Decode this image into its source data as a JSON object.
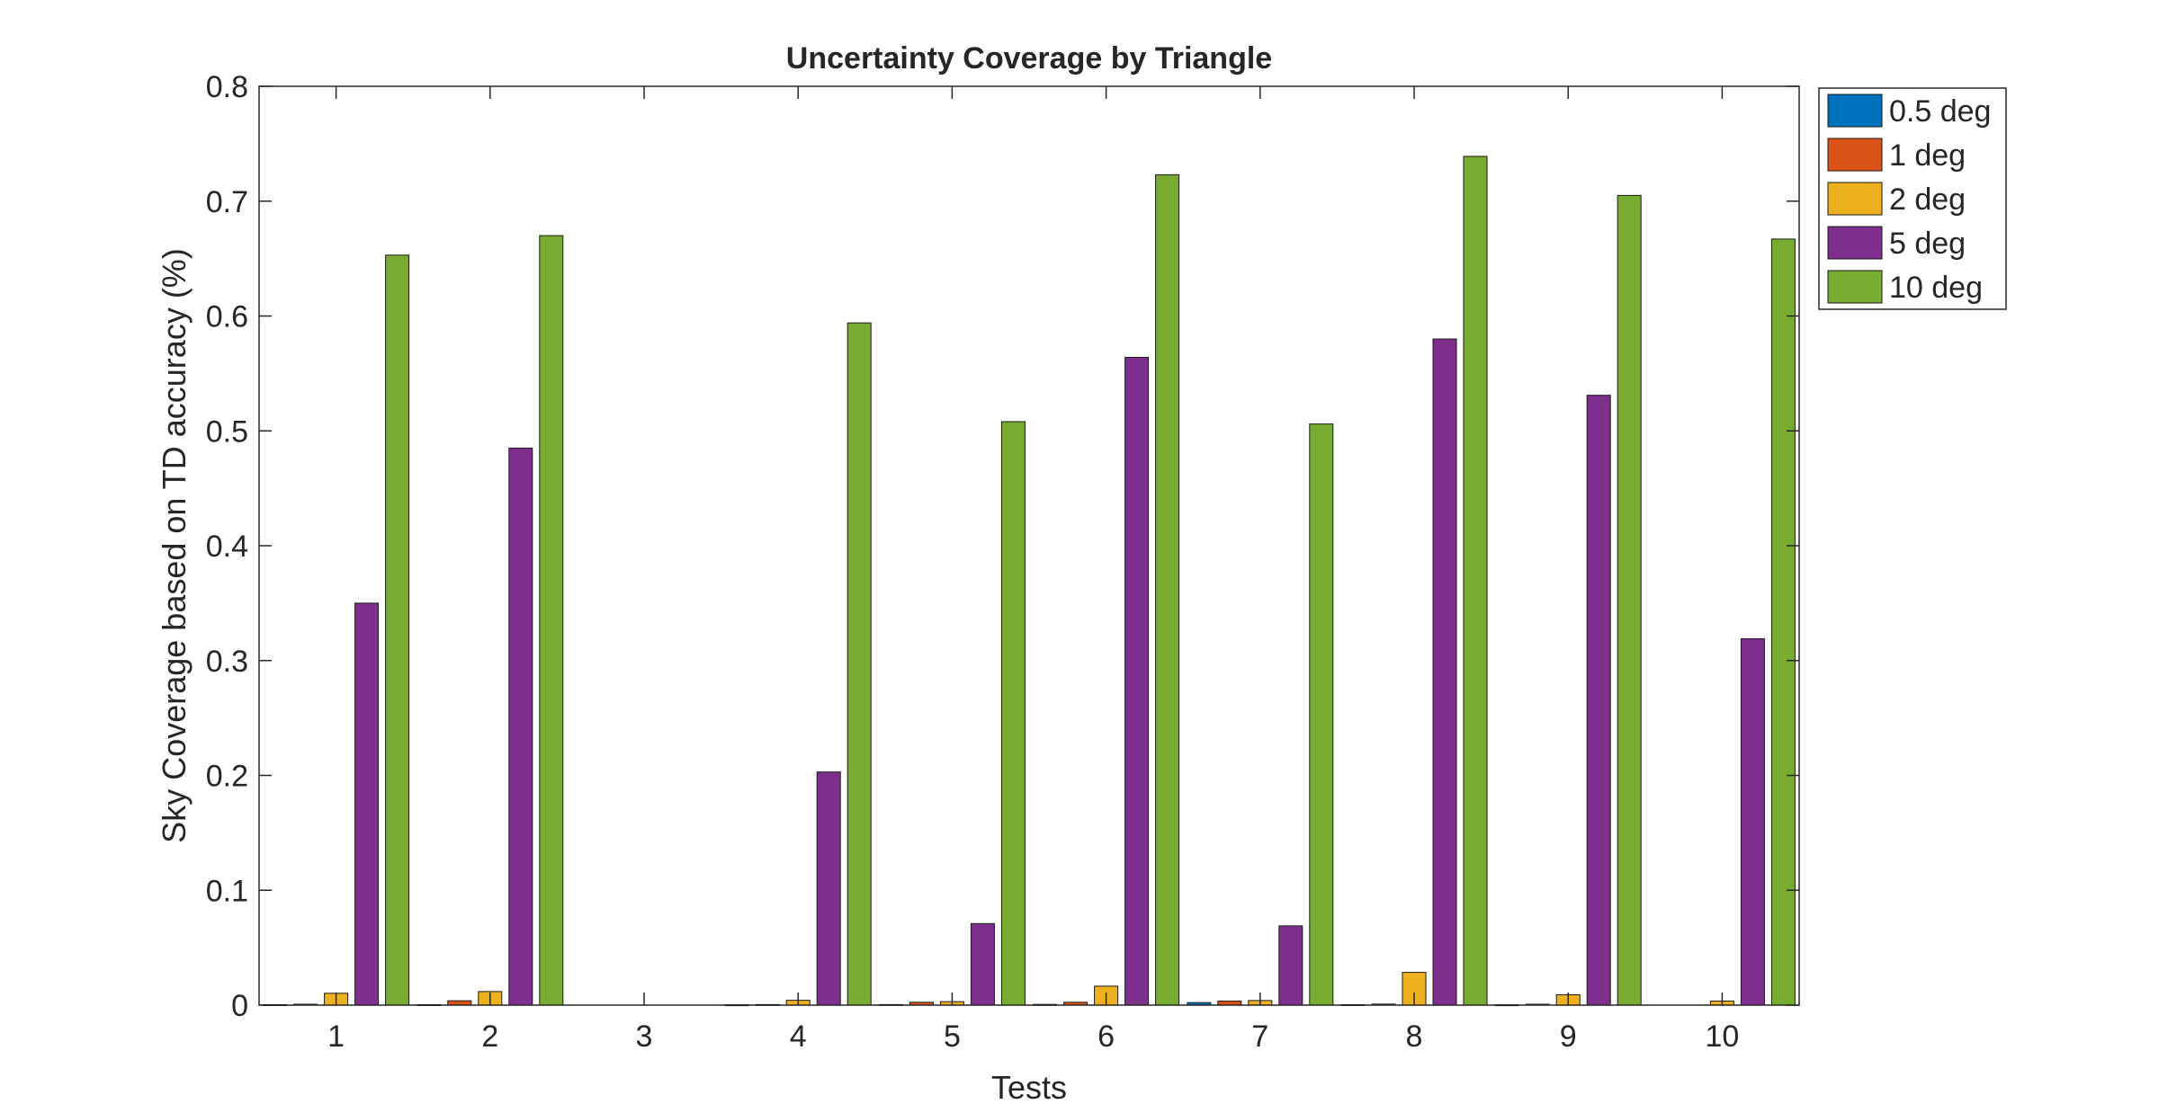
{
  "chart_data": {
    "type": "bar",
    "title": "Uncertainty Coverage by Triangle",
    "xlabel": "Tests",
    "ylabel": "Sky Coverage based on TD accuracy (%)",
    "categories": [
      "1",
      "2",
      "3",
      "4",
      "5",
      "6",
      "7",
      "8",
      "9",
      "10"
    ],
    "ylim": [
      0,
      0.8
    ],
    "yticks": [
      0,
      0.1,
      0.2,
      0.3,
      0.4,
      0.5,
      0.6,
      0.7,
      0.8
    ],
    "ytick_labels": [
      "0",
      "0.1",
      "0.2",
      "0.3",
      "0.4",
      "0.5",
      "0.6",
      "0.7",
      "0.8"
    ],
    "grid": false,
    "legend_position": "outside-top-right",
    "series": [
      {
        "name": "0.5 deg",
        "color": "#0072BD",
        "values": [
          0.0004,
          0.0004,
          0.0,
          0.0003,
          0.0005,
          0.0006,
          0.0022,
          0.0004,
          0.0003,
          0.0
        ]
      },
      {
        "name": "1 deg",
        "color": "#D95319",
        "values": [
          0.0008,
          0.0038,
          0.0,
          0.0005,
          0.0025,
          0.0025,
          0.0035,
          0.0009,
          0.0008,
          0.0
        ]
      },
      {
        "name": "2 deg",
        "color": "#EDB120",
        "values": [
          0.0103,
          0.0118,
          0.0,
          0.0042,
          0.003,
          0.0165,
          0.004,
          0.0285,
          0.009,
          0.0035
        ]
      },
      {
        "name": "5 deg",
        "color": "#7E2F8E",
        "values": [
          0.35,
          0.485,
          0.0,
          0.203,
          0.071,
          0.564,
          0.069,
          0.58,
          0.531,
          0.319
        ]
      },
      {
        "name": "10 deg",
        "color": "#77AC30",
        "values": [
          0.653,
          0.67,
          0.0,
          0.594,
          0.508,
          0.723,
          0.506,
          0.739,
          0.705,
          0.667
        ]
      }
    ]
  }
}
